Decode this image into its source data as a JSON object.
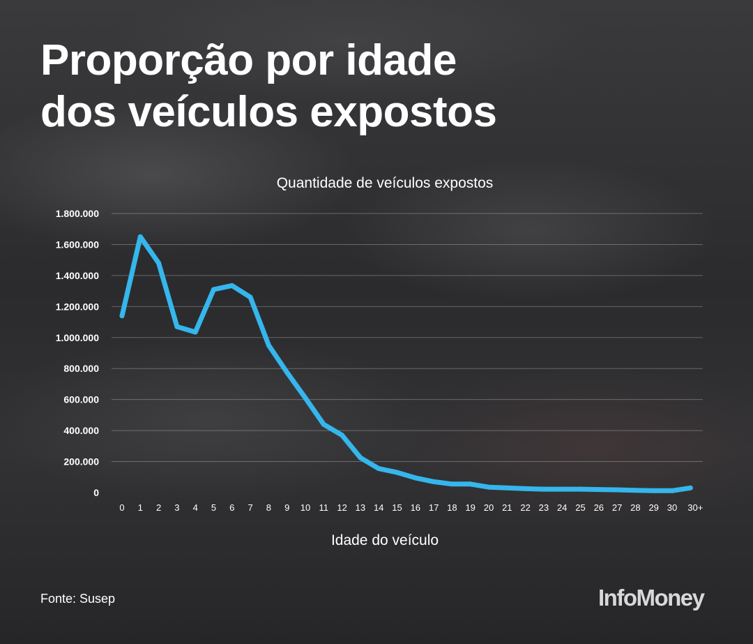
{
  "title": {
    "line1": "Proporção por idade",
    "line2": "dos veículos expostos"
  },
  "source": "Fonte: Susep",
  "brand": "InfoMoney",
  "colors": {
    "line": "#35b6ec",
    "background": "#2f2f31",
    "text": "#ffffff",
    "grid": "#8a8a8c"
  },
  "chart_data": {
    "type": "line",
    "title": "Quantidade de veículos expostos",
    "xlabel": "Idade do veículo",
    "ylabel": "",
    "ylim": [
      0,
      1800000
    ],
    "grid": true,
    "legend": "none",
    "yticks": [
      {
        "value": 0,
        "label": "0"
      },
      {
        "value": 200000,
        "label": "200.000"
      },
      {
        "value": 400000,
        "label": "400.000"
      },
      {
        "value": 600000,
        "label": "600.000"
      },
      {
        "value": 800000,
        "label": "800.000"
      },
      {
        "value": 1000000,
        "label": "1.000.000"
      },
      {
        "value": 1200000,
        "label": "1.200.000"
      },
      {
        "value": 1400000,
        "label": "1.400.000"
      },
      {
        "value": 1600000,
        "label": "1.600.000"
      },
      {
        "value": 1800000,
        "label": "1.800.000"
      }
    ],
    "categories": [
      "0",
      "1",
      "2",
      "3",
      "4",
      "5",
      "6",
      "7",
      "8",
      "9",
      "10",
      "11",
      "12",
      "13",
      "14",
      "15",
      "16",
      "17",
      "18",
      "19",
      "20",
      "21",
      "22",
      "23",
      "24",
      "25",
      "26",
      "27",
      "28",
      "29",
      "30",
      "30+"
    ],
    "series": [
      {
        "values": [
          1140000,
          1650000,
          1480000,
          1070000,
          1035000,
          1310000,
          1335000,
          1260000,
          950000,
          775000,
          610000,
          440000,
          370000,
          225000,
          155000,
          130000,
          95000,
          70000,
          55000,
          55000,
          35000,
          30000,
          25000,
          22000,
          22000,
          22000,
          20000,
          18000,
          15000,
          12000,
          12000,
          30000
        ]
      }
    ]
  }
}
